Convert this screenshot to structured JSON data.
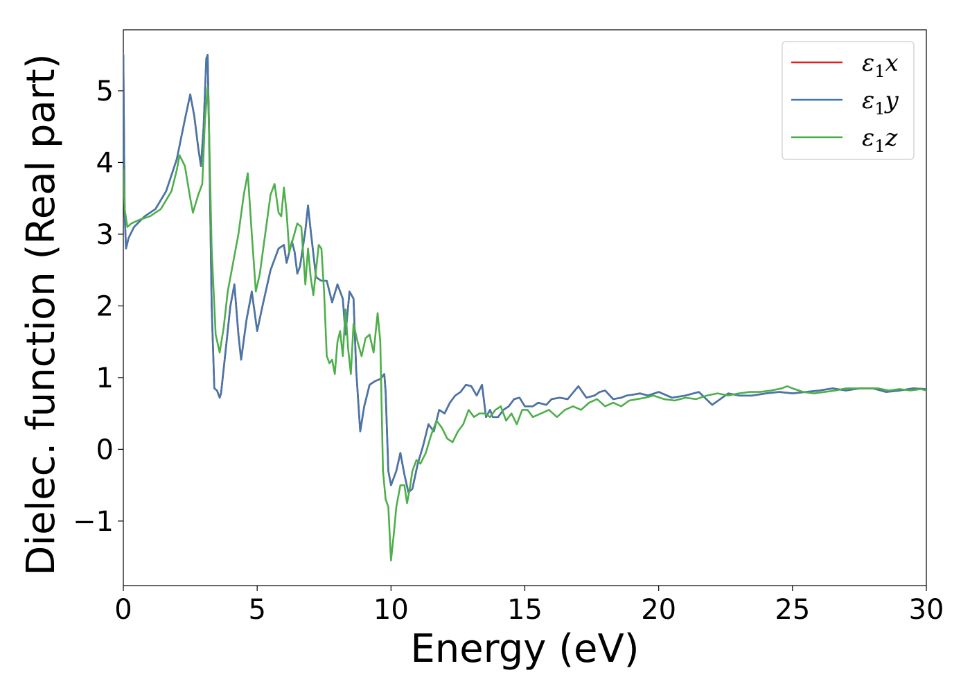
{
  "chart_data": {
    "type": "line",
    "title": "",
    "xlabel": "Energy (eV)",
    "ylabel": "Dielec. function (Real part)",
    "xlim": [
      0,
      30
    ],
    "ylim": [
      -1.9,
      5.85
    ],
    "xticks": [
      0,
      5,
      10,
      15,
      20,
      25,
      30
    ],
    "yticks": [
      -1,
      0,
      1,
      2,
      3,
      4,
      5
    ],
    "xtick_labels": [
      "0",
      "5",
      "10",
      "15",
      "20",
      "25",
      "30"
    ],
    "ytick_labels": [
      "−1",
      "0",
      "1",
      "2",
      "3",
      "4",
      "5"
    ],
    "grid": false,
    "legend": {
      "placement": "top-right",
      "entries": [
        {
          "prefix": "ε",
          "sub": "1",
          "suffix": "x"
        },
        {
          "prefix": "ε",
          "sub": "1",
          "suffix": "y"
        },
        {
          "prefix": "ε",
          "sub": "1",
          "suffix": "z"
        }
      ]
    },
    "series": [
      {
        "name": "ε1x",
        "color": "#e41a1c",
        "x": [
          0,
          0.05,
          0.1,
          0.2,
          0.4,
          0.8,
          1.2,
          1.6,
          2.0,
          2.3,
          2.5,
          2.65,
          2.8,
          2.9,
          3.0,
          3.1,
          3.15,
          3.2,
          3.3,
          3.4,
          3.5,
          3.6,
          3.65,
          3.8,
          4.0,
          4.15,
          4.3,
          4.4,
          4.6,
          4.8,
          5.0,
          5.2,
          5.5,
          5.8,
          6.0,
          6.1,
          6.3,
          6.4,
          6.5,
          6.6,
          6.8,
          6.9,
          7.0,
          7.2,
          7.4,
          7.6,
          7.8,
          8.0,
          8.2,
          8.3,
          8.45,
          8.6,
          8.7,
          8.85,
          9.0,
          9.2,
          9.4,
          9.6,
          9.75,
          9.8,
          9.9,
          10.0,
          10.1,
          10.2,
          10.35,
          10.5,
          10.65,
          10.8,
          11.0,
          11.2,
          11.4,
          11.6,
          11.8,
          12.0,
          12.2,
          12.4,
          12.6,
          12.8,
          13.0,
          13.2,
          13.4,
          13.55,
          13.7,
          13.8,
          14.0,
          14.2,
          14.4,
          14.6,
          14.8,
          15.0,
          15.3,
          15.5,
          15.8,
          16.0,
          16.3,
          16.6,
          17.0,
          17.3,
          17.6,
          17.8,
          18.0,
          18.3,
          18.6,
          18.8,
          19.0,
          19.3,
          19.6,
          20.0,
          20.5,
          21.0,
          21.5,
          22.0,
          22.3,
          22.6,
          23.0,
          23.5,
          24.0,
          24.5,
          25.0,
          25.5,
          26.0,
          26.5,
          27.0,
          27.5,
          28.0,
          28.5,
          29.0,
          29.5,
          30.0
        ],
        "y": [
          5.5,
          3.3,
          2.8,
          2.95,
          3.1,
          3.25,
          3.35,
          3.6,
          4.05,
          4.6,
          4.95,
          4.65,
          4.2,
          3.95,
          4.5,
          5.45,
          5.5,
          4.5,
          2.0,
          0.85,
          0.82,
          0.72,
          0.78,
          1.3,
          2.0,
          2.3,
          1.6,
          1.25,
          1.8,
          2.2,
          1.65,
          2.0,
          2.5,
          2.8,
          2.85,
          2.6,
          2.9,
          2.75,
          2.45,
          2.55,
          3.05,
          3.4,
          3.05,
          2.4,
          2.35,
          2.35,
          2.05,
          2.3,
          2.1,
          1.6,
          2.2,
          2.1,
          1.1,
          0.25,
          0.6,
          0.9,
          0.95,
          0.98,
          1.05,
          0.8,
          -0.3,
          -0.5,
          -0.4,
          -0.3,
          -0.05,
          -0.35,
          -0.6,
          -0.55,
          -0.2,
          0.05,
          0.35,
          0.25,
          0.55,
          0.5,
          0.65,
          0.75,
          0.8,
          0.9,
          0.88,
          0.75,
          0.9,
          0.45,
          0.55,
          0.45,
          0.45,
          0.55,
          0.6,
          0.7,
          0.72,
          0.6,
          0.6,
          0.65,
          0.62,
          0.7,
          0.72,
          0.7,
          0.88,
          0.72,
          0.75,
          0.8,
          0.82,
          0.7,
          0.72,
          0.75,
          0.76,
          0.78,
          0.75,
          0.8,
          0.72,
          0.75,
          0.8,
          0.62,
          0.7,
          0.78,
          0.75,
          0.75,
          0.78,
          0.8,
          0.78,
          0.8,
          0.82,
          0.85,
          0.82,
          0.85,
          0.85,
          0.8,
          0.82,
          0.85,
          0.84
        ]
      },
      {
        "name": "ε1y",
        "color": "#4477aa",
        "x": [
          0,
          0.05,
          0.1,
          0.2,
          0.4,
          0.8,
          1.2,
          1.6,
          2.0,
          2.3,
          2.5,
          2.65,
          2.8,
          2.9,
          3.0,
          3.1,
          3.15,
          3.2,
          3.3,
          3.4,
          3.5,
          3.6,
          3.65,
          3.8,
          4.0,
          4.15,
          4.3,
          4.4,
          4.6,
          4.8,
          5.0,
          5.2,
          5.5,
          5.8,
          6.0,
          6.1,
          6.3,
          6.4,
          6.5,
          6.6,
          6.8,
          6.9,
          7.0,
          7.2,
          7.4,
          7.6,
          7.8,
          8.0,
          8.2,
          8.3,
          8.45,
          8.6,
          8.7,
          8.85,
          9.0,
          9.2,
          9.4,
          9.6,
          9.75,
          9.8,
          9.9,
          10.0,
          10.1,
          10.2,
          10.35,
          10.5,
          10.65,
          10.8,
          11.0,
          11.2,
          11.4,
          11.6,
          11.8,
          12.0,
          12.2,
          12.4,
          12.6,
          12.8,
          13.0,
          13.2,
          13.4,
          13.55,
          13.7,
          13.8,
          14.0,
          14.2,
          14.4,
          14.6,
          14.8,
          15.0,
          15.3,
          15.5,
          15.8,
          16.0,
          16.3,
          16.6,
          17.0,
          17.3,
          17.6,
          17.8,
          18.0,
          18.3,
          18.6,
          18.8,
          19.0,
          19.3,
          19.6,
          20.0,
          20.5,
          21.0,
          21.5,
          22.0,
          22.3,
          22.6,
          23.0,
          23.5,
          24.0,
          24.5,
          25.0,
          25.5,
          26.0,
          26.5,
          27.0,
          27.5,
          28.0,
          28.5,
          29.0,
          29.5,
          30.0
        ],
        "y": [
          5.5,
          3.3,
          2.8,
          2.95,
          3.1,
          3.25,
          3.35,
          3.6,
          4.05,
          4.6,
          4.95,
          4.65,
          4.2,
          3.95,
          4.5,
          5.45,
          5.5,
          4.5,
          2.0,
          0.85,
          0.82,
          0.72,
          0.78,
          1.3,
          2.0,
          2.3,
          1.6,
          1.25,
          1.8,
          2.2,
          1.65,
          2.0,
          2.5,
          2.8,
          2.85,
          2.6,
          2.9,
          2.75,
          2.45,
          2.55,
          3.05,
          3.4,
          3.05,
          2.4,
          2.35,
          2.35,
          2.05,
          2.3,
          2.1,
          1.6,
          2.2,
          2.1,
          1.1,
          0.25,
          0.6,
          0.9,
          0.95,
          0.98,
          1.05,
          0.8,
          -0.3,
          -0.5,
          -0.4,
          -0.3,
          -0.05,
          -0.35,
          -0.6,
          -0.55,
          -0.2,
          0.05,
          0.35,
          0.25,
          0.55,
          0.5,
          0.65,
          0.75,
          0.8,
          0.9,
          0.88,
          0.75,
          0.9,
          0.45,
          0.55,
          0.45,
          0.45,
          0.55,
          0.6,
          0.7,
          0.72,
          0.6,
          0.6,
          0.65,
          0.62,
          0.7,
          0.72,
          0.7,
          0.88,
          0.72,
          0.75,
          0.8,
          0.82,
          0.7,
          0.72,
          0.75,
          0.76,
          0.78,
          0.75,
          0.8,
          0.72,
          0.75,
          0.8,
          0.62,
          0.7,
          0.78,
          0.75,
          0.75,
          0.78,
          0.8,
          0.78,
          0.8,
          0.82,
          0.85,
          0.82,
          0.85,
          0.85,
          0.8,
          0.82,
          0.85,
          0.84
        ]
      },
      {
        "name": "ε1z",
        "color": "#4daf4a",
        "x": [
          0,
          0.05,
          0.15,
          0.3,
          0.6,
          1.0,
          1.4,
          1.8,
          2.0,
          2.1,
          2.3,
          2.5,
          2.6,
          2.8,
          2.95,
          3.05,
          3.15,
          3.2,
          3.3,
          3.45,
          3.6,
          3.75,
          3.9,
          4.1,
          4.3,
          4.5,
          4.65,
          4.8,
          4.95,
          5.1,
          5.3,
          5.5,
          5.65,
          5.8,
          5.9,
          6.0,
          6.1,
          6.2,
          6.35,
          6.5,
          6.65,
          6.8,
          6.9,
          7.0,
          7.1,
          7.2,
          7.3,
          7.4,
          7.5,
          7.6,
          7.7,
          7.8,
          7.9,
          8.0,
          8.1,
          8.2,
          8.3,
          8.4,
          8.5,
          8.6,
          8.75,
          8.9,
          9.05,
          9.2,
          9.35,
          9.5,
          9.6,
          9.7,
          9.8,
          9.9,
          10.0,
          10.1,
          10.2,
          10.35,
          10.5,
          10.6,
          10.7,
          10.8,
          10.95,
          11.1,
          11.3,
          11.5,
          11.7,
          11.9,
          12.1,
          12.3,
          12.5,
          12.7,
          12.9,
          13.1,
          13.3,
          13.5,
          13.7,
          13.9,
          14.1,
          14.3,
          14.5,
          14.7,
          14.9,
          15.1,
          15.3,
          15.6,
          15.9,
          16.2,
          16.5,
          16.8,
          17.1,
          17.4,
          17.7,
          18.0,
          18.3,
          18.6,
          18.9,
          19.2,
          19.5,
          19.8,
          20.2,
          20.6,
          21.0,
          21.4,
          21.8,
          22.2,
          22.6,
          23.0,
          23.4,
          23.8,
          24.2,
          24.6,
          24.8,
          25.0,
          25.4,
          25.8,
          26.2,
          26.6,
          27.0,
          27.4,
          27.8,
          28.2,
          28.6,
          29.0,
          29.4,
          29.8,
          30.0
        ],
        "y": [
          3.9,
          3.35,
          3.1,
          3.15,
          3.2,
          3.25,
          3.35,
          3.6,
          3.9,
          4.1,
          3.95,
          3.5,
          3.3,
          3.55,
          3.7,
          4.6,
          5.05,
          4.5,
          2.8,
          1.6,
          1.35,
          1.7,
          2.2,
          2.6,
          3.0,
          3.55,
          3.85,
          3.0,
          2.2,
          2.45,
          3.0,
          3.55,
          3.7,
          3.3,
          3.25,
          3.65,
          3.3,
          2.75,
          2.95,
          3.15,
          3.1,
          2.3,
          2.8,
          2.4,
          2.15,
          2.5,
          2.85,
          2.8,
          2.2,
          1.3,
          1.2,
          1.25,
          1.05,
          1.5,
          1.65,
          1.3,
          1.95,
          1.4,
          1.05,
          1.75,
          1.5,
          1.3,
          1.55,
          1.6,
          1.35,
          1.9,
          1.5,
          -0.3,
          -0.7,
          -0.8,
          -1.55,
          -1.2,
          -0.8,
          -0.5,
          -0.5,
          -0.75,
          -0.55,
          -0.3,
          -0.15,
          -0.2,
          -0.05,
          0.2,
          0.4,
          0.3,
          0.15,
          0.1,
          0.25,
          0.35,
          0.55,
          0.45,
          0.5,
          0.5,
          0.45,
          0.55,
          0.6,
          0.4,
          0.5,
          0.35,
          0.55,
          0.55,
          0.45,
          0.5,
          0.55,
          0.45,
          0.55,
          0.6,
          0.55,
          0.65,
          0.7,
          0.6,
          0.65,
          0.6,
          0.68,
          0.7,
          0.72,
          0.75,
          0.7,
          0.68,
          0.72,
          0.7,
          0.75,
          0.78,
          0.75,
          0.78,
          0.8,
          0.8,
          0.82,
          0.85,
          0.88,
          0.85,
          0.8,
          0.78,
          0.8,
          0.82,
          0.85,
          0.85,
          0.85,
          0.85,
          0.82,
          0.84,
          0.82,
          0.84,
          0.82
        ]
      }
    ]
  }
}
